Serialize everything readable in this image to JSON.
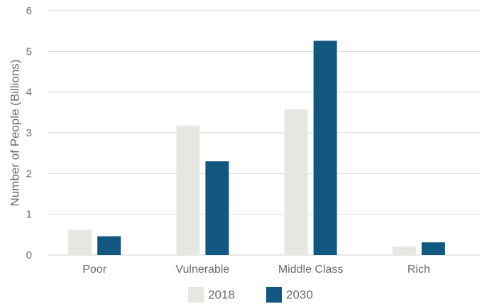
{
  "chart_data": {
    "type": "bar",
    "title": "",
    "xlabel": "",
    "ylabel": "Number of People (Billions)",
    "ylim": [
      0,
      6
    ],
    "yticks": [
      0,
      1,
      2,
      3,
      4,
      5,
      6
    ],
    "grid": true,
    "legend_position": "bottom",
    "categories": [
      "Poor",
      "Vulnerable",
      "Middle Class",
      "Rich"
    ],
    "series": [
      {
        "name": "2018",
        "color": "#e6e7e2",
        "values": [
          0.62,
          3.18,
          3.58,
          0.21
        ]
      },
      {
        "name": "2030",
        "color": "#11577f",
        "values": [
          0.46,
          2.3,
          5.26,
          0.31
        ]
      }
    ]
  }
}
